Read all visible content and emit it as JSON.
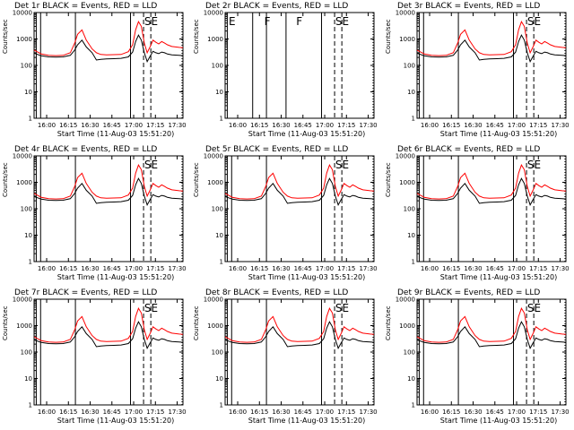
{
  "chart_data": [
    {
      "type": "line",
      "detector": "1",
      "title": "Det 1r BLACK = Events, RED = LLD",
      "markers": [
        "SE"
      ],
      "series": [
        {
          "name": "Events",
          "color": "#000000"
        },
        {
          "name": "LLD",
          "color": "#ff0000"
        }
      ],
      "xlabel": "Start Time (11-Aug-03 15:51:20)",
      "ylabel": "Counts/sec",
      "xticks": [
        "16:00",
        "16:15",
        "16:30",
        "16:45",
        "17:00",
        "17:15",
        "17:30"
      ],
      "yticks": [
        "1",
        "10",
        "100",
        "1000",
        "10000"
      ],
      "ylim": [
        1,
        10000
      ],
      "xlim": [
        "15:51:20",
        "17:34:00"
      ]
    },
    {
      "type": "line",
      "detector": "2",
      "title": "Det 2r BLACK = Events, RED = LLD",
      "markers": [
        "E",
        "F",
        "F",
        "SE"
      ],
      "series": [],
      "xlabel": "Start Time (11-Aug-03 15:51:20)",
      "ylabel": "Counts/sec",
      "xticks": [
        "16:00",
        "16:15",
        "16:30",
        "16:45",
        "17:00",
        "17:15",
        "17:30"
      ],
      "yticks": [
        "1",
        "10",
        "100",
        "1000",
        "10000"
      ],
      "ylim": [
        1,
        10000
      ],
      "xlim": [
        "15:51:20",
        "17:34:00"
      ]
    },
    {
      "type": "line",
      "detector": "3",
      "title": "Det 3r BLACK = Events, RED = LLD",
      "markers": [
        "SE"
      ],
      "series": [
        {
          "name": "Events",
          "color": "#000000"
        },
        {
          "name": "LLD",
          "color": "#ff0000"
        }
      ],
      "xlabel": "Start Time (11-Aug-03 15:51:20)",
      "ylabel": "Counts/sec",
      "xticks": [
        "16:00",
        "16:15",
        "16:30",
        "16:45",
        "17:00",
        "17:15",
        "17:30"
      ],
      "yticks": [
        "1",
        "10",
        "100",
        "1000",
        "10000"
      ],
      "ylim": [
        1,
        10000
      ],
      "xlim": [
        "15:51:20",
        "17:34:00"
      ]
    },
    {
      "type": "line",
      "detector": "4",
      "title": "Det 4r BLACK = Events, RED = LLD",
      "markers": [
        "SE"
      ],
      "series": [
        {
          "name": "Events",
          "color": "#000000"
        },
        {
          "name": "LLD",
          "color": "#ff0000"
        }
      ],
      "xlabel": "Start Time (11-Aug-03 15:51:20)",
      "ylabel": "Counts/sec",
      "xticks": [
        "16:00",
        "16:15",
        "16:30",
        "16:45",
        "17:00",
        "17:15",
        "17:30"
      ],
      "yticks": [
        "1",
        "10",
        "100",
        "1000",
        "10000"
      ],
      "ylim": [
        1,
        10000
      ],
      "xlim": [
        "15:51:20",
        "17:34:00"
      ]
    },
    {
      "type": "line",
      "detector": "5",
      "title": "Det 5r BLACK = Events, RED = LLD",
      "markers": [
        "SE"
      ],
      "series": [
        {
          "name": "Events",
          "color": "#000000"
        },
        {
          "name": "LLD",
          "color": "#ff0000"
        }
      ],
      "xlabel": "Start Time (11-Aug-03 15:51:20)",
      "ylabel": "Counts/sec",
      "xticks": [
        "16:00",
        "16:15",
        "16:30",
        "16:45",
        "17:00",
        "17:15",
        "17:30"
      ],
      "yticks": [
        "1",
        "10",
        "100",
        "1000",
        "10000"
      ],
      "ylim": [
        1,
        10000
      ],
      "xlim": [
        "15:51:20",
        "17:34:00"
      ]
    },
    {
      "type": "line",
      "detector": "6",
      "title": "Det 6r BLACK = Events, RED = LLD",
      "markers": [
        "SE"
      ],
      "series": [
        {
          "name": "Events",
          "color": "#000000"
        },
        {
          "name": "LLD",
          "color": "#ff0000"
        }
      ],
      "xlabel": "Start Time (11-Aug-03 15:51:20)",
      "ylabel": "Counts/sec",
      "xticks": [
        "16:00",
        "16:15",
        "16:30",
        "16:45",
        "17:00",
        "17:15",
        "17:30"
      ],
      "yticks": [
        "1",
        "10",
        "100",
        "1000",
        "10000"
      ],
      "ylim": [
        1,
        10000
      ],
      "xlim": [
        "15:51:20",
        "17:34:00"
      ]
    },
    {
      "type": "line",
      "detector": "7",
      "title": "Det 7r BLACK = Events, RED = LLD",
      "markers": [
        "SE"
      ],
      "series": [
        {
          "name": "Events",
          "color": "#000000"
        },
        {
          "name": "LLD",
          "color": "#ff0000"
        }
      ],
      "xlabel": "Start Time (11-Aug-03 15:51:20)",
      "ylabel": "Counts/sec",
      "xticks": [
        "16:00",
        "16:15",
        "16:30",
        "16:45",
        "17:00",
        "17:15",
        "17:30"
      ],
      "yticks": [
        "1",
        "10",
        "100",
        "1000",
        "10000"
      ],
      "ylim": [
        1,
        10000
      ],
      "xlim": [
        "15:51:20",
        "17:34:00"
      ]
    },
    {
      "type": "line",
      "detector": "8",
      "title": "Det 8r BLACK = Events, RED = LLD",
      "markers": [
        "SE"
      ],
      "series": [
        {
          "name": "Events",
          "color": "#000000"
        },
        {
          "name": "LLD",
          "color": "#ff0000"
        }
      ],
      "xlabel": "Start Time (11-Aug-03 15:51:20)",
      "ylabel": "Counts/sec",
      "xticks": [
        "16:00",
        "16:15",
        "16:30",
        "16:45",
        "17:00",
        "17:15",
        "17:30"
      ],
      "yticks": [
        "1",
        "10",
        "100",
        "1000",
        "10000"
      ],
      "ylim": [
        1,
        10000
      ],
      "xlim": [
        "15:51:20",
        "17:34:00"
      ]
    },
    {
      "type": "line",
      "detector": "9",
      "title": "Det 9r BLACK = Events, RED = LLD",
      "markers": [
        "SE"
      ],
      "series": [
        {
          "name": "Events",
          "color": "#000000"
        },
        {
          "name": "LLD",
          "color": "#ff0000"
        }
      ],
      "xlabel": "Start Time (11-Aug-03 15:51:20)",
      "ylabel": "Counts/sec",
      "xticks": [
        "16:00",
        "16:15",
        "16:30",
        "16:45",
        "17:00",
        "17:15",
        "17:30"
      ],
      "yticks": [
        "1",
        "10",
        "100",
        "1000",
        "10000"
      ],
      "ylim": [
        1,
        10000
      ],
      "xlim": [
        "15:51:20",
        "17:34:00"
      ]
    }
  ],
  "profile": {
    "times_min": [
      0,
      5,
      10,
      15,
      20,
      25,
      28,
      30,
      33,
      36,
      40,
      43,
      46,
      50,
      55,
      60,
      65,
      68,
      70,
      72,
      74,
      76,
      78,
      80,
      82,
      84,
      86,
      88,
      90,
      92,
      95,
      100,
      102.7
    ],
    "lld": [
      380,
      270,
      240,
      235,
      240,
      300,
      700,
      1500,
      2200,
      900,
      420,
      300,
      260,
      250,
      255,
      260,
      330,
      600,
      2200,
      4500,
      3000,
      700,
      300,
      500,
      900,
      750,
      650,
      800,
      700,
      600,
      520,
      480,
      470
    ],
    "events": [
      290,
      230,
      210,
      205,
      210,
      240,
      380,
      600,
      900,
      500,
      300,
      160,
      170,
      175,
      180,
      185,
      210,
      320,
      800,
      1400,
      900,
      300,
      140,
      220,
      340,
      300,
      280,
      320,
      300,
      270,
      250,
      240,
      235
    ]
  }
}
